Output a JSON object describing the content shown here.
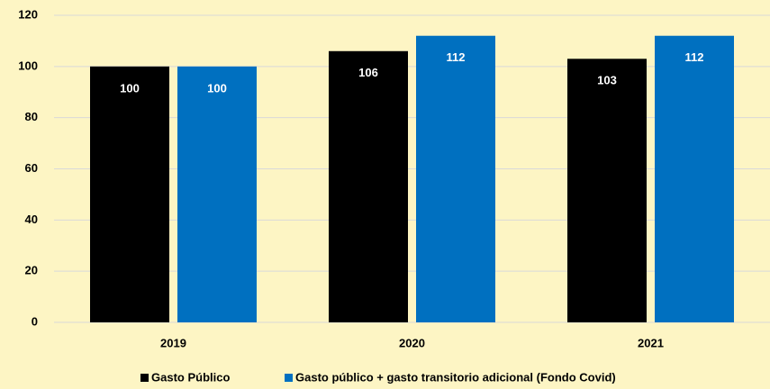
{
  "chart_data": {
    "type": "bar",
    "categories": [
      "2019",
      "2020",
      "2021"
    ],
    "series": [
      {
        "name": "Gasto Público",
        "color": "#000000",
        "values": [
          100,
          106,
          103
        ]
      },
      {
        "name": "Gasto público + gasto transitorio adicional (Fondo Covid)",
        "color": "#0070c0",
        "values": [
          100,
          112,
          112
        ]
      }
    ],
    "ylim": [
      0,
      120
    ],
    "yticks": [
      0,
      20,
      40,
      60,
      80,
      100,
      120
    ],
    "grid": true,
    "legend": "bottom"
  }
}
